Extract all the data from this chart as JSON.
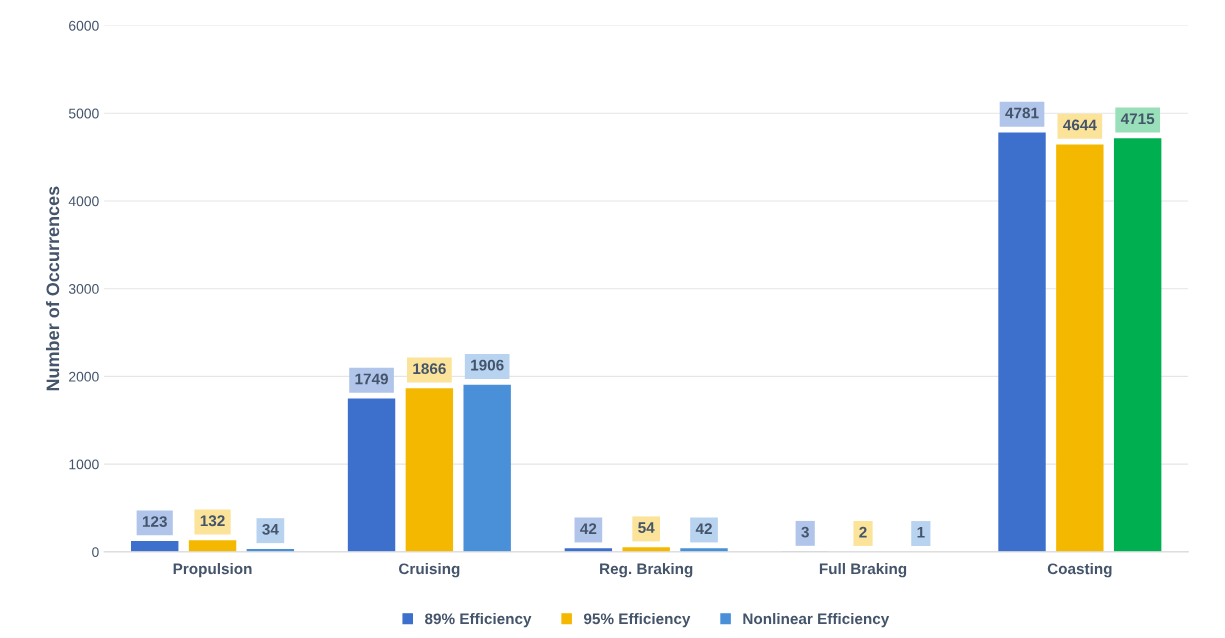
{
  "chart_data": {
    "type": "bar",
    "ylabel": "Number of Occurrences",
    "categories": [
      "Propulsion",
      "Cruising",
      "Reg. Braking",
      "Full Braking",
      "Coasting"
    ],
    "series": [
      {
        "name": "89% Efficiency",
        "color": "#3d6fcc",
        "values": [
          123,
          1749,
          42,
          3,
          4781
        ]
      },
      {
        "name": "95% Efficiency",
        "color": "#f5b800",
        "values": [
          132,
          1866,
          54,
          2,
          4644
        ]
      },
      {
        "name": "Nonlinear Efficiency",
        "color": "#4a90d9",
        "colors": [
          "#4a90d9",
          "#4a90d9",
          "#4a90d9",
          "#4a90d9",
          "#00b050"
        ],
        "values": [
          34,
          1906,
          42,
          1,
          4715
        ]
      }
    ],
    "ylim": [
      0,
      6000
    ],
    "yticks": [
      0,
      1000,
      2000,
      3000,
      4000,
      5000,
      6000
    ],
    "grid": "y",
    "legend": "bottom",
    "data_labels": true
  }
}
